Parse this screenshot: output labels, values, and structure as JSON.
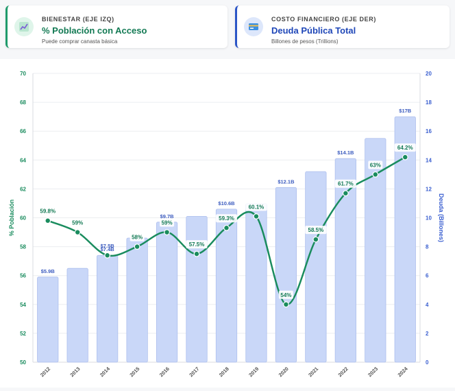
{
  "cards": [
    {
      "kicker": "BIENESTAR (EJE IZQ)",
      "title": "% Población con Acceso",
      "subtitle": "Puede comprar canasta básica",
      "icon": "chart-line-icon",
      "accent": "#1e9a6b"
    },
    {
      "kicker": "COSTO FINANCIERO (EJE DER)",
      "title": "Deuda Pública Total",
      "subtitle": "Billones de pesos (Trillions)",
      "icon": "credit-card-icon",
      "accent": "#2b55c7"
    }
  ],
  "chart_data": {
    "type": "bar+line",
    "categories": [
      "2012",
      "2013",
      "2014",
      "2015",
      "2016",
      "2017",
      "2018",
      "2019",
      "2020",
      "2021",
      "2022",
      "2023",
      "2024"
    ],
    "left_axis": {
      "label": "% Población",
      "range": [
        50,
        70
      ],
      "ticks": [
        50,
        52,
        54,
        56,
        58,
        60,
        62,
        64,
        66,
        68,
        70
      ],
      "color": "#1a8c5e"
    },
    "right_axis": {
      "label": "Deuda (Billones)",
      "range": [
        0,
        20
      ],
      "ticks": [
        0,
        2,
        4,
        6,
        8,
        10,
        12,
        14,
        16,
        18,
        20
      ],
      "color": "#3a5fd0"
    },
    "series": [
      {
        "name": "% Población con Acceso",
        "type": "line",
        "axis": "left",
        "color": "#1a8c5e",
        "values": [
          59.8,
          59,
          57.4,
          58,
          59,
          57.5,
          59.3,
          60.1,
          54,
          58.5,
          61.7,
          63,
          64.2
        ],
        "labels": [
          "59.8%",
          "59%",
          "",
          "58%",
          "59%",
          "57.5%",
          "59.3%",
          "60.1%",
          "54%",
          "58.5%",
          "61.7%",
          "63%",
          "64.2%"
        ]
      },
      {
        "name": "Deuda Pública Total",
        "type": "bar",
        "axis": "right",
        "color": "#c9d7f8",
        "values": [
          5.9,
          6.5,
          7.4,
          8.6,
          9.7,
          10.1,
          10.6,
          11.0,
          12.1,
          13.2,
          14.1,
          15.5,
          17.0
        ],
        "labels": [
          "$5.9B",
          "",
          "$7.4B",
          "",
          "$9.7B",
          "",
          "$10.6B",
          "",
          "$12.1B",
          "",
          "$14.1B",
          "",
          "$17B"
        ]
      }
    ],
    "overlap_label": "$7.5B",
    "grid": true
  }
}
